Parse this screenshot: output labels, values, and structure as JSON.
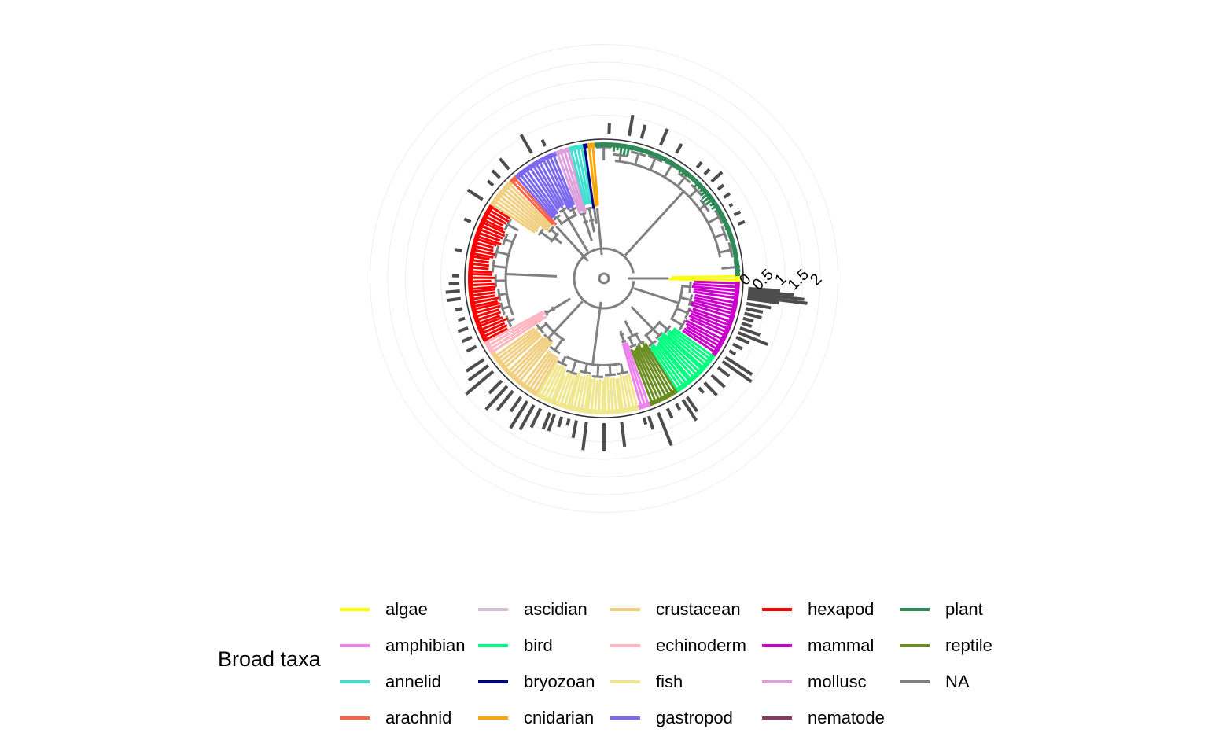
{
  "chart_data": {
    "type": "phylogenetic-tree",
    "layout": "circular",
    "bar_axis": {
      "ticks": [
        "0",
        "0.5",
        "1",
        "1.5",
        "2"
      ],
      "range": [
        0,
        2
      ]
    },
    "legend": {
      "title": "Broad taxa",
      "placement": "bottom",
      "items": [
        {
          "label": "algae",
          "color": "#ffff00"
        },
        {
          "label": "amphibian",
          "color": "#ee82ee"
        },
        {
          "label": "annelid",
          "color": "#40e0d0"
        },
        {
          "label": "arachnid",
          "color": "#ff6347"
        },
        {
          "label": "ascidian",
          "color": "#d8bfd8"
        },
        {
          "label": "bird",
          "color": "#00ff7f"
        },
        {
          "label": "bryozoan",
          "color": "#000080"
        },
        {
          "label": "cnidarian",
          "color": "#ffa500"
        },
        {
          "label": "crustacean",
          "color": "#f0d080"
        },
        {
          "label": "echinoderm",
          "color": "#ffb6c1"
        },
        {
          "label": "fish",
          "color": "#f0e68c"
        },
        {
          "label": "gastropod",
          "color": "#7b68ee"
        },
        {
          "label": "hexapod",
          "color": "#ff0000"
        },
        {
          "label": "mammal",
          "color": "#cc00cc"
        },
        {
          "label": "mollusc",
          "color": "#dda0dd"
        },
        {
          "label": "nematode",
          "color": "#8b3a62"
        },
        {
          "label": "plant",
          "color": "#2e8b57"
        },
        {
          "label": "reptile",
          "color": "#6b8e23"
        },
        {
          "label": "NA",
          "color": "#808080"
        }
      ]
    },
    "clades": [
      {
        "taxon": "algae",
        "arc_deg": [
          -1.5,
          1.5
        ]
      },
      {
        "taxon": "mammal",
        "arc_deg": [
          1.5,
          35
        ]
      },
      {
        "taxon": "bird",
        "arc_deg": [
          35,
          57
        ]
      },
      {
        "taxon": "reptile",
        "arc_deg": [
          57,
          70
        ]
      },
      {
        "taxon": "amphibian",
        "arc_deg": [
          70,
          75
        ]
      },
      {
        "taxon": "fish",
        "arc_deg": [
          75,
          120
        ]
      },
      {
        "taxon": "crustacean",
        "arc_deg": [
          120,
          146
        ]
      },
      {
        "taxon": "echinoderm",
        "arc_deg": [
          146,
          152
        ]
      },
      {
        "taxon": "hexapod",
        "arc_deg": [
          152,
          213
        ]
      },
      {
        "taxon": "crustacean",
        "arc_deg": [
          213,
          226
        ]
      },
      {
        "taxon": "arachnid",
        "arc_deg": [
          226,
          229
        ]
      },
      {
        "taxon": "gastropod",
        "arc_deg": [
          229,
          249
        ]
      },
      {
        "taxon": "mollusc",
        "arc_deg": [
          249,
          255
        ]
      },
      {
        "taxon": "annelid",
        "arc_deg": [
          255,
          261
        ]
      },
      {
        "taxon": "bryozoan",
        "arc_deg": [
          261,
          263
        ]
      },
      {
        "taxon": "cnidarian",
        "arc_deg": [
          263,
          266
        ]
      },
      {
        "taxon": "plant",
        "arc_deg": [
          266,
          359
        ]
      }
    ],
    "bars": [
      {
        "angle": 4,
        "value": 0.9
      },
      {
        "angle": 5,
        "value": 1.3
      },
      {
        "angle": 6,
        "value": 1.6
      },
      {
        "angle": 7,
        "value": 1.7
      },
      {
        "angle": 8,
        "value": 0.9
      },
      {
        "angle": 10,
        "value": 0.7
      },
      {
        "angle": 12,
        "value": 0.5
      },
      {
        "angle": 14,
        "value": 0.5
      },
      {
        "angle": 16,
        "value": 0.3
      },
      {
        "angle": 18,
        "value": 0.3
      },
      {
        "angle": 20,
        "value": 0.6
      },
      {
        "angle": 22,
        "value": 0.9
      },
      {
        "angle": 24,
        "value": 0.4
      },
      {
        "angle": 27,
        "value": 0.3
      },
      {
        "angle": 30,
        "value": 0.2
      },
      {
        "angle": 33,
        "value": 0.9
      },
      {
        "angle": 35,
        "value": 1.0
      },
      {
        "angle": 38,
        "value": 0.4
      },
      {
        "angle": 42,
        "value": 0.5
      },
      {
        "angle": 46,
        "value": 0.5
      },
      {
        "angle": 49,
        "value": 0.2
      },
      {
        "angle": 55,
        "value": 0.5
      },
      {
        "angle": 57,
        "value": 0.7
      },
      {
        "angle": 60,
        "value": 0.2
      },
      {
        "angle": 64,
        "value": 0.3
      },
      {
        "angle": 68,
        "value": 1.0
      },
      {
        "angle": 72,
        "value": 0.4
      },
      {
        "angle": 74,
        "value": 0.2
      },
      {
        "angle": 83,
        "value": 0.7
      },
      {
        "angle": 90,
        "value": 0.8
      },
      {
        "angle": 97,
        "value": 0.8
      },
      {
        "angle": 101,
        "value": 0.5
      },
      {
        "angle": 104,
        "value": 0.2
      },
      {
        "angle": 107,
        "value": 0.3
      },
      {
        "angle": 110,
        "value": 0.5
      },
      {
        "angle": 112,
        "value": 0.5
      },
      {
        "angle": 116,
        "value": 0.6
      },
      {
        "angle": 119,
        "value": 0.8
      },
      {
        "angle": 122,
        "value": 0.9
      },
      {
        "angle": 125,
        "value": 0.5
      },
      {
        "angle": 129,
        "value": 0.7
      },
      {
        "angle": 132,
        "value": 0.9
      },
      {
        "angle": 135,
        "value": 0.5
      },
      {
        "angle": 140,
        "value": 1.0
      },
      {
        "angle": 143,
        "value": 0.7
      },
      {
        "angle": 146,
        "value": 0.6
      },
      {
        "angle": 152,
        "value": 0.3
      },
      {
        "angle": 156,
        "value": 0.3
      },
      {
        "angle": 160,
        "value": 0.3
      },
      {
        "angle": 164,
        "value": 0.2
      },
      {
        "angle": 168,
        "value": 0.2
      },
      {
        "angle": 172,
        "value": 0.4
      },
      {
        "angle": 175,
        "value": 0.4
      },
      {
        "angle": 178,
        "value": 0.3
      },
      {
        "angle": 181,
        "value": 0.2
      },
      {
        "angle": 191,
        "value": 0.2
      },
      {
        "angle": 203,
        "value": 0.2
      },
      {
        "angle": 213,
        "value": 0.5
      },
      {
        "angle": 220,
        "value": 0.2
      },
      {
        "angle": 224,
        "value": 0.3
      },
      {
        "angle": 229,
        "value": 0.4
      },
      {
        "angle": 240,
        "value": 0.6
      },
      {
        "angle": 246,
        "value": 0.2
      },
      {
        "angle": 272,
        "value": 0.3
      },
      {
        "angle": 280,
        "value": 0.6
      },
      {
        "angle": 285,
        "value": 0.4
      },
      {
        "angle": 293,
        "value": 0.5
      },
      {
        "angle": 300,
        "value": 0.3
      },
      {
        "angle": 310,
        "value": 0.2
      },
      {
        "angle": 314,
        "value": 0.2
      },
      {
        "angle": 318,
        "value": 0.4
      },
      {
        "angle": 322,
        "value": 0.2
      },
      {
        "angle": 326,
        "value": 0.2
      },
      {
        "angle": 330,
        "value": 0.1
      },
      {
        "angle": 334,
        "value": 0.2
      },
      {
        "angle": 338,
        "value": 0.2
      }
    ]
  }
}
